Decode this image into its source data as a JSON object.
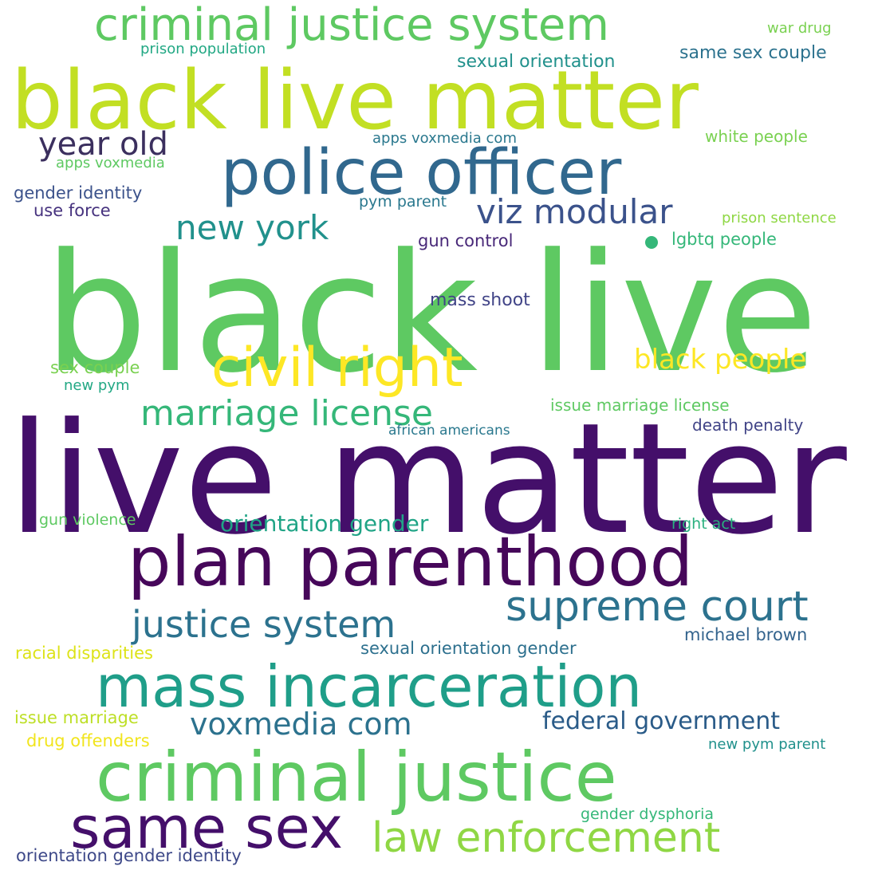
{
  "words": [
    {
      "text": "black live",
      "color": "#5ec962"
    },
    {
      "text": "live matter",
      "color": "#440f6a"
    },
    {
      "text": "black live matter",
      "color": "#c2df23"
    },
    {
      "text": "police officer",
      "color": "#31688e"
    },
    {
      "text": "plan parenthood",
      "color": "#46075a"
    },
    {
      "text": "criminal justice",
      "color": "#5ec962"
    },
    {
      "text": "mass incarceration",
      "color": "#1f9e89"
    },
    {
      "text": "criminal justice system",
      "color": "#5ec962"
    },
    {
      "text": "civil right",
      "color": "#fde725"
    },
    {
      "text": "same sex",
      "color": "#440f6a"
    },
    {
      "text": "law enforcement",
      "color": "#8fd744"
    },
    {
      "text": "supreme court",
      "color": "#2c728e"
    },
    {
      "text": "justice system",
      "color": "#2c728e"
    },
    {
      "text": "marriage license",
      "color": "#35b779"
    },
    {
      "text": "viz modular",
      "color": "#3b528b"
    },
    {
      "text": "new york",
      "color": "#21918c"
    },
    {
      "text": "voxmedia com",
      "color": "#2c728e"
    },
    {
      "text": "year old",
      "color": "#3b2f5e"
    },
    {
      "text": "black people",
      "color": "#fde725"
    },
    {
      "text": "federal government",
      "color": "#2a5b88"
    },
    {
      "text": "orientation gender",
      "color": "#20a486"
    },
    {
      "text": "sexual orientation",
      "color": "#21918c"
    },
    {
      "text": "same sex couple",
      "color": "#2c728e"
    },
    {
      "text": "war drug",
      "color": "#7ad151"
    },
    {
      "text": "prison population",
      "color": "#22a884"
    },
    {
      "text": "apps voxmedia com",
      "color": "#2a788e"
    },
    {
      "text": "white people",
      "color": "#7ad151"
    },
    {
      "text": "apps voxmedia",
      "color": "#5ec962"
    },
    {
      "text": "gender identity",
      "color": "#3b528b"
    },
    {
      "text": "use force",
      "color": "#46327e"
    },
    {
      "text": "pym parent",
      "color": "#2a788e"
    },
    {
      "text": "prison sentence",
      "color": "#8fd744"
    },
    {
      "text": "gun control",
      "color": "#482878"
    },
    {
      "text": "lgbtq people",
      "color": "#35b779"
    },
    {
      "text": "mass shoot",
      "color": "#414487"
    },
    {
      "text": "sex couple",
      "color": "#7ad151"
    },
    {
      "text": "new pym",
      "color": "#22a884"
    },
    {
      "text": "issue marriage license",
      "color": "#5ec962"
    },
    {
      "text": "african americans",
      "color": "#2a788e"
    },
    {
      "text": "death penalty",
      "color": "#414487"
    },
    {
      "text": "gun violence",
      "color": "#5ec962"
    },
    {
      "text": "right act",
      "color": "#2ab07f"
    },
    {
      "text": "racial disparities",
      "color": "#dde318"
    },
    {
      "text": "sexual orientation gender",
      "color": "#2d708e"
    },
    {
      "text": "michael brown",
      "color": "#33638d"
    },
    {
      "text": "issue marriage",
      "color": "#bddf26"
    },
    {
      "text": "drug offenders",
      "color": "#f1e51d"
    },
    {
      "text": "new pym parent",
      "color": "#21918c"
    },
    {
      "text": "gender dysphoria",
      "color": "#35b779"
    },
    {
      "text": "orientation gender identity",
      "color": "#3e4989"
    }
  ],
  "dot_color": "#35b779"
}
